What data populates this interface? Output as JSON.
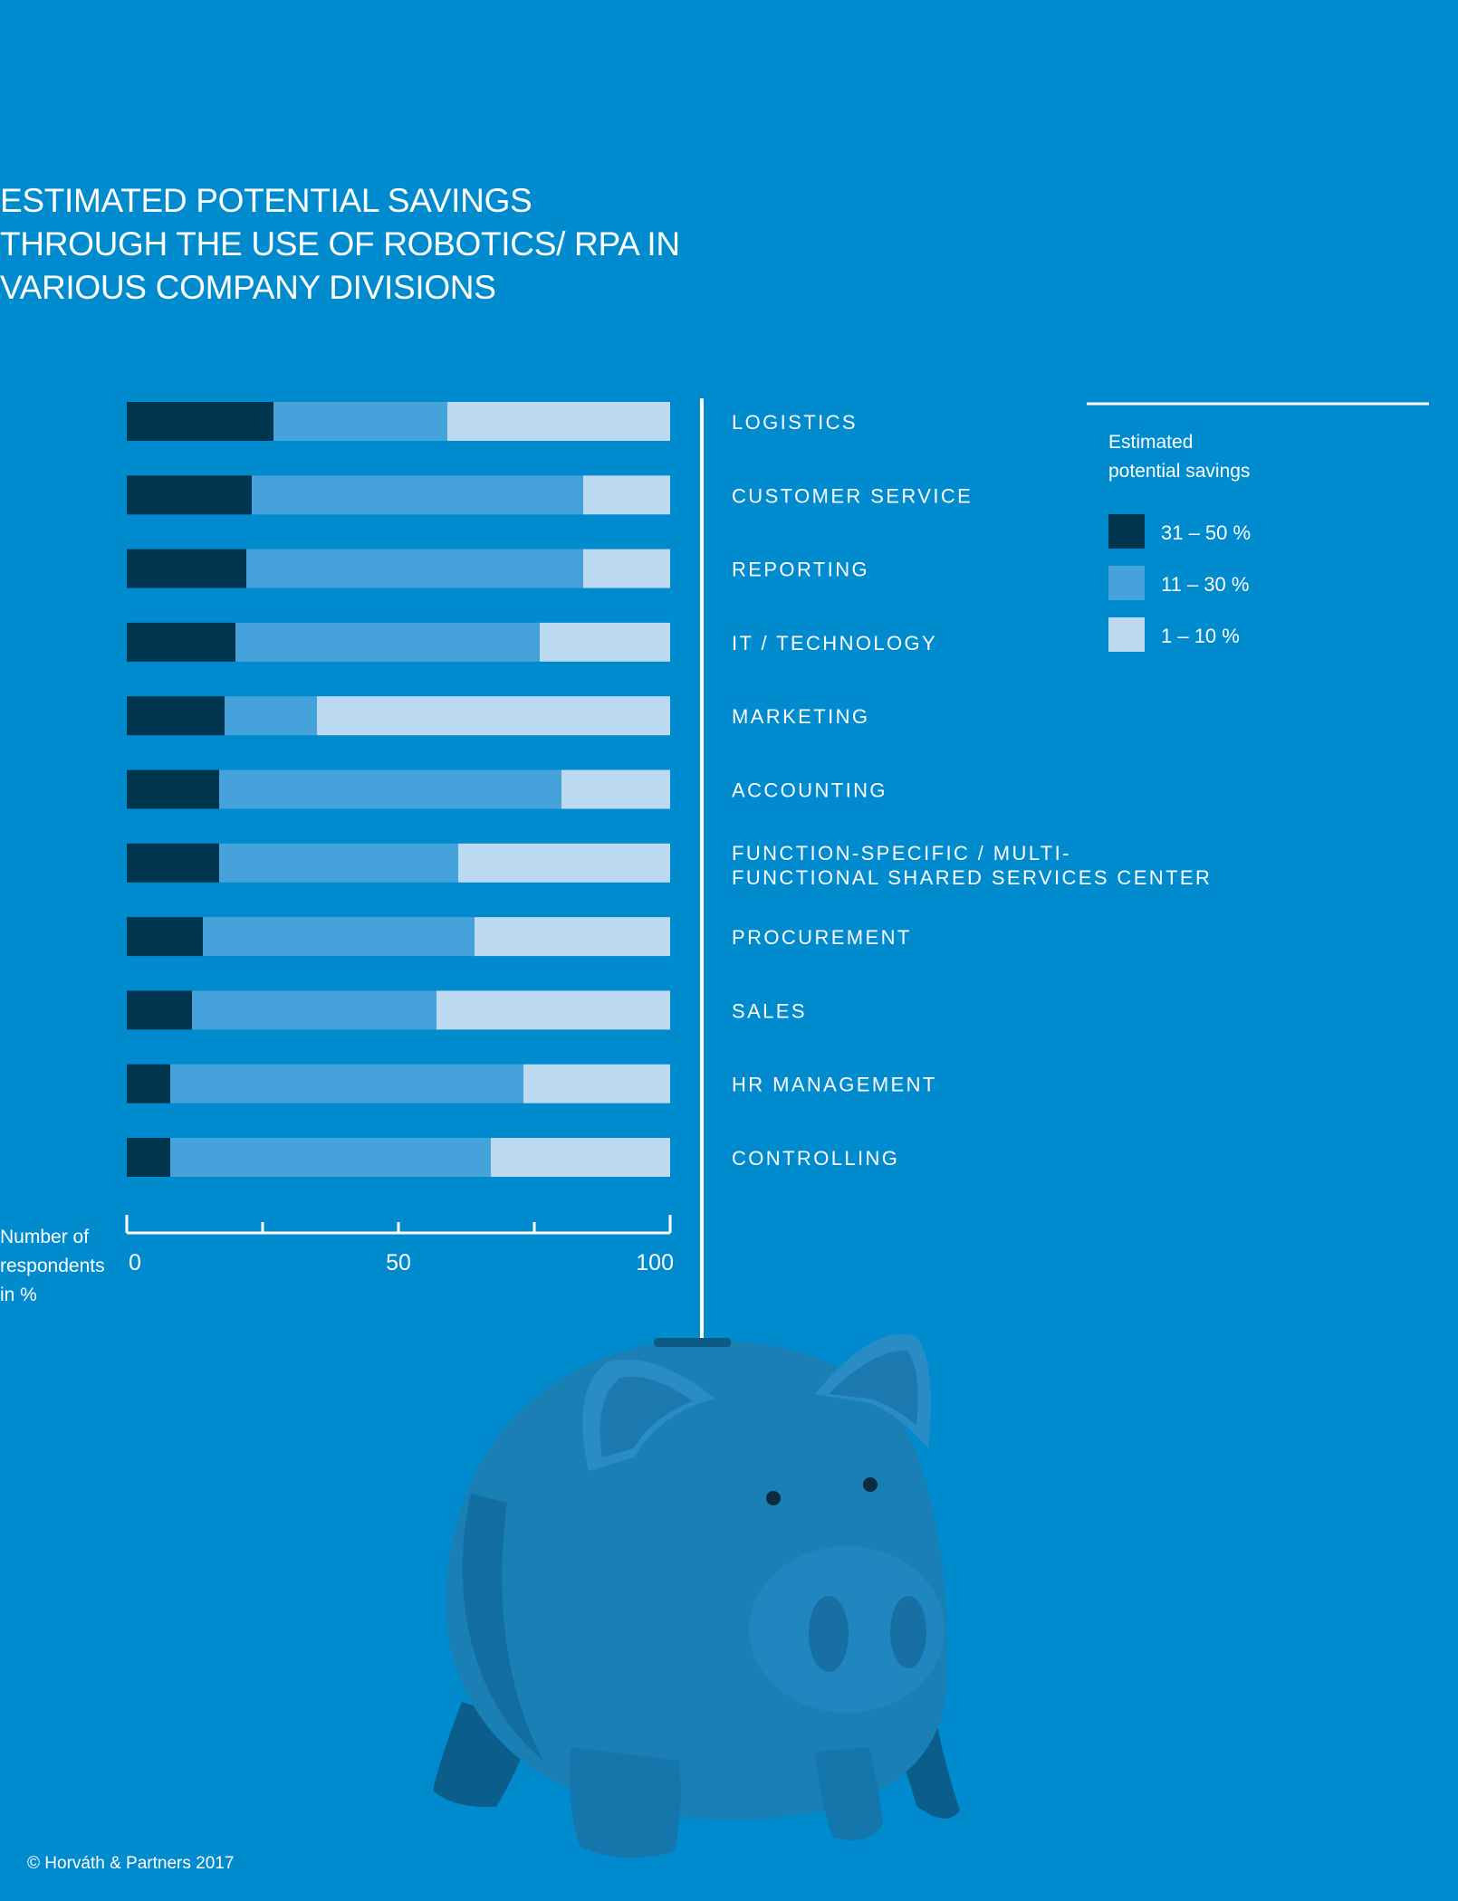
{
  "chart_data": {
    "type": "bar",
    "stacked": true,
    "orientation": "horizontal",
    "title_lines": [
      "ESTIMATED POTENTIAL SAVINGS",
      "THROUGH THE USE OF ROBOTICS/ RPA IN",
      "VARIOUS COMPANY DIVISIONS"
    ],
    "categories": [
      [
        "LOGISTICS"
      ],
      [
        "CUSTOMER SERVICE"
      ],
      [
        "REPORTING"
      ],
      [
        "IT / TECHNOLOGY"
      ],
      [
        "MARKETING"
      ],
      [
        "ACCOUNTING"
      ],
      [
        "FUNCTION-SPECIFIC  / MULTI-",
        "FUNCTIONAL SHARED SERVICES CENTER"
      ],
      [
        "PROCUREMENT"
      ],
      [
        "SALES"
      ],
      [
        "HR MANAGEMENT"
      ],
      [
        "CONTROLLING"
      ]
    ],
    "series": [
      {
        "name": "31 – 50 %",
        "color": "#00354f",
        "values": [
          27,
          23,
          22,
          20,
          18,
          17,
          17,
          14,
          12,
          8,
          8
        ]
      },
      {
        "name": "11 – 30 %",
        "color": "#45a2da",
        "values": [
          32,
          61,
          62,
          56,
          17,
          63,
          44,
          50,
          45,
          65,
          59
        ]
      },
      {
        "name": "1 – 10 %",
        "color": "#bbd9f1",
        "values": [
          41,
          16,
          16,
          24,
          65,
          20,
          39,
          36,
          43,
          27,
          33
        ]
      }
    ],
    "xlabel_lines": [
      "Number of",
      "respondents",
      "in %"
    ],
    "xlim": [
      0,
      100
    ],
    "x_ticks": [
      0,
      25,
      50,
      75,
      100
    ],
    "x_tick_labels": [
      "0",
      "",
      "50",
      "",
      "100"
    ],
    "legend": {
      "title_lines": [
        "Estimated",
        "potential savings"
      ],
      "placement": "top-right"
    }
  },
  "credit": "© Horváth & Partners 2017"
}
